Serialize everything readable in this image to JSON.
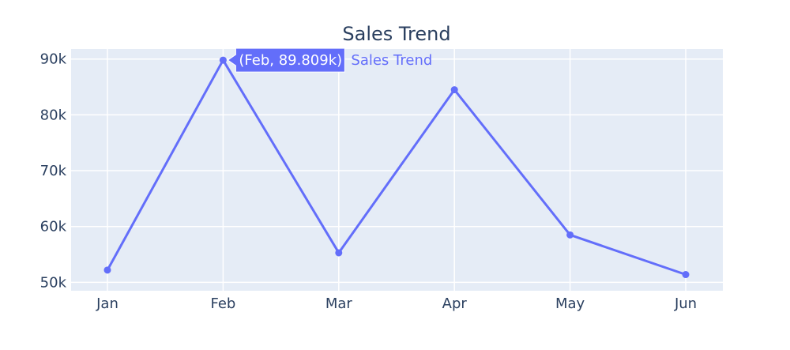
{
  "chart_data": {
    "type": "line",
    "title": "Sales Trend",
    "xlabel": "",
    "ylabel": "",
    "categories": [
      "Jan",
      "Feb",
      "Mar",
      "Apr",
      "May",
      "Jun"
    ],
    "series": [
      {
        "name": "Sales Trend",
        "values": [
          52200,
          89809,
          55300,
          84500,
          58500,
          51400
        ],
        "color": "#636efa"
      }
    ],
    "ylim": [
      48500,
      91800
    ],
    "yticks": [
      50000,
      60000,
      70000,
      80000,
      90000
    ],
    "ytick_labels": [
      "50k",
      "60k",
      "70k",
      "80k",
      "90k"
    ],
    "grid": true,
    "plot_bgcolor": "#e5ecf6",
    "gridcolor": "#ffffff",
    "text_color": "#2a3f5f",
    "hover": {
      "point_index": 1,
      "label": "(Feb, 89.809k)",
      "series_name": "Sales Trend"
    }
  }
}
